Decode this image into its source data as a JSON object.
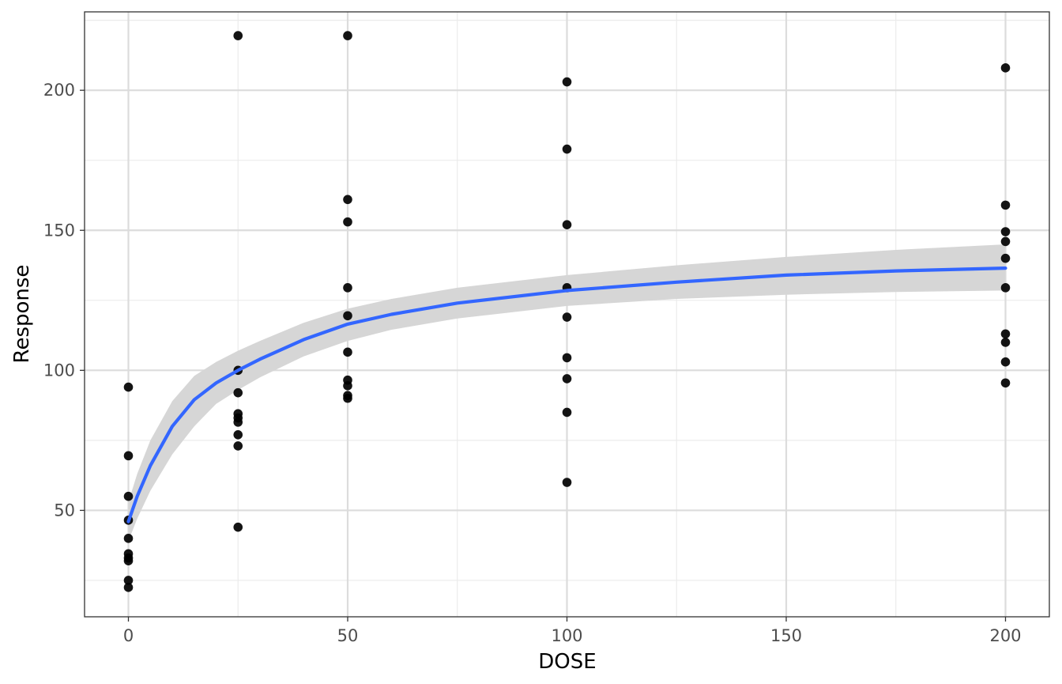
{
  "chart_data": {
    "type": "scatter",
    "xlabel": "DOSE",
    "ylabel": "Response",
    "xlim": [
      -10,
      210
    ],
    "ylim": [
      12,
      228
    ],
    "x_ticks": [
      0,
      50,
      100,
      150,
      200
    ],
    "y_ticks": [
      50,
      100,
      150,
      200
    ],
    "x_tick_labels": [
      "0",
      "50",
      "100",
      "150",
      "200"
    ],
    "y_tick_labels": [
      "50",
      "100",
      "150",
      "200"
    ],
    "grid": true,
    "points": [
      [
        0,
        94
      ],
      [
        0,
        69.5
      ],
      [
        0,
        55
      ],
      [
        0,
        46.5
      ],
      [
        0,
        40
      ],
      [
        0,
        34.5
      ],
      [
        0,
        33
      ],
      [
        0,
        32
      ],
      [
        0,
        25
      ],
      [
        0,
        22.5
      ],
      [
        25,
        219.5
      ],
      [
        25,
        100
      ],
      [
        25,
        92
      ],
      [
        25,
        84.5
      ],
      [
        25,
        83
      ],
      [
        25,
        81.5
      ],
      [
        25,
        77
      ],
      [
        25,
        73
      ],
      [
        25,
        44
      ],
      [
        50,
        219.5
      ],
      [
        50,
        161
      ],
      [
        50,
        153
      ],
      [
        50,
        129.5
      ],
      [
        50,
        119.5
      ],
      [
        50,
        106.5
      ],
      [
        50,
        96.5
      ],
      [
        50,
        94.5
      ],
      [
        50,
        91
      ],
      [
        50,
        90
      ],
      [
        100,
        203
      ],
      [
        100,
        179
      ],
      [
        100,
        152
      ],
      [
        100,
        129.5
      ],
      [
        100,
        119
      ],
      [
        100,
        104.5
      ],
      [
        100,
        97
      ],
      [
        100,
        85
      ],
      [
        100,
        60
      ],
      [
        200,
        208
      ],
      [
        200,
        159
      ],
      [
        200,
        149.5
      ],
      [
        200,
        146
      ],
      [
        200,
        140
      ],
      [
        200,
        129.5
      ],
      [
        200,
        113
      ],
      [
        200,
        110
      ],
      [
        200,
        103
      ],
      [
        200,
        95.5
      ]
    ],
    "point_color": "#000000",
    "fit_line": {
      "x": [
        0,
        2,
        5,
        10,
        15,
        20,
        25,
        30,
        40,
        50,
        60,
        75,
        100,
        125,
        150,
        175,
        200
      ],
      "y": [
        46,
        55,
        66,
        80,
        89.5,
        95.5,
        100,
        104,
        111,
        116.5,
        120,
        124,
        128.5,
        131.5,
        134,
        135.5,
        136.5
      ],
      "color": "#3366ff"
    },
    "confidence_band": {
      "x": [
        0,
        2,
        5,
        10,
        15,
        20,
        25,
        30,
        40,
        50,
        60,
        75,
        100,
        125,
        150,
        175,
        200
      ],
      "lower": [
        39,
        47,
        57,
        70,
        80,
        88,
        93,
        97.5,
        105,
        110.5,
        114.5,
        118.5,
        123,
        125.5,
        127,
        128,
        128.5
      ],
      "upper": [
        53,
        63,
        75,
        89,
        98,
        103,
        107,
        110.5,
        117,
        122,
        125.5,
        129.5,
        134,
        137.5,
        140.5,
        143,
        145
      ],
      "color": "#d6d6d6"
    }
  }
}
